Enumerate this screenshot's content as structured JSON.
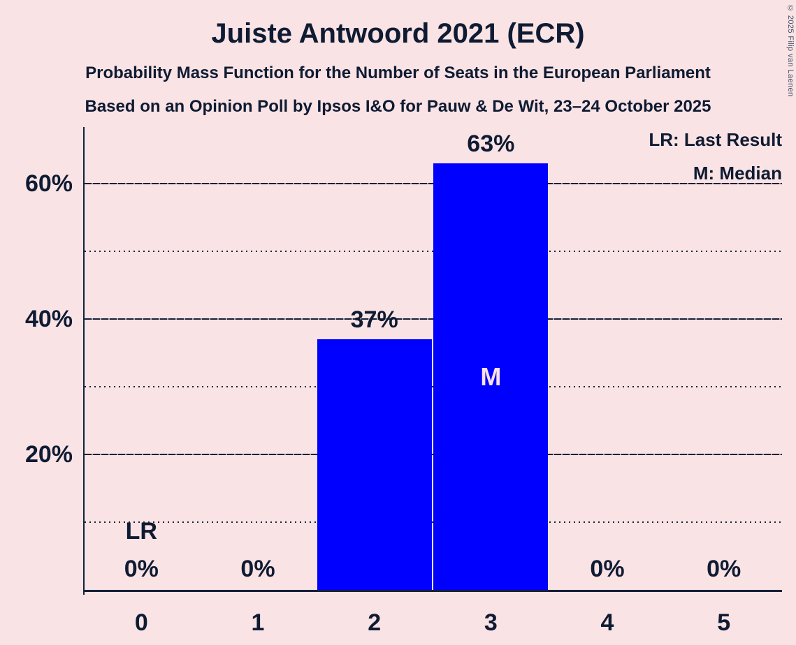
{
  "page": {
    "copyright": "© 2025 Filip van Laenen"
  },
  "chart_data": {
    "type": "bar",
    "title": "Juiste Antwoord 2021 (ECR)",
    "subtitle": "Probability Mass Function for the Number of Seats in the European Parliament",
    "subtitle2": "Based on an Opinion Poll by Ipsos I&O for Pauw & De Wit, 23–24 October 2025",
    "categories": [
      "0",
      "1",
      "2",
      "3",
      "4",
      "5"
    ],
    "values": [
      0,
      0,
      37,
      63,
      0,
      0
    ],
    "bar_value_labels": [
      "0%",
      "0%",
      "37%",
      "63%",
      "0%",
      "0%"
    ],
    "median_index": 3,
    "median_marker": "M",
    "last_result_index": 0,
    "last_result_marker": "LR",
    "legend": [
      {
        "label": "LR: Last Result"
      },
      {
        "label": "M: Median"
      }
    ],
    "xlabel": "",
    "ylabel": "",
    "ylim": [
      0,
      68
    ],
    "y_major_ticks": [
      {
        "value": 20,
        "label": "20%"
      },
      {
        "value": 40,
        "label": "40%"
      },
      {
        "value": 60,
        "label": "60%"
      }
    ],
    "y_minor_gridlines": [
      10,
      30,
      50
    ],
    "grid": true,
    "legend_position": "top-right",
    "colors": {
      "background": "#fae3e4",
      "bar": "#0000fe",
      "text": "#0e1b33",
      "axis": "#16213a",
      "bar_inner_label": "#f8e2e4"
    }
  }
}
